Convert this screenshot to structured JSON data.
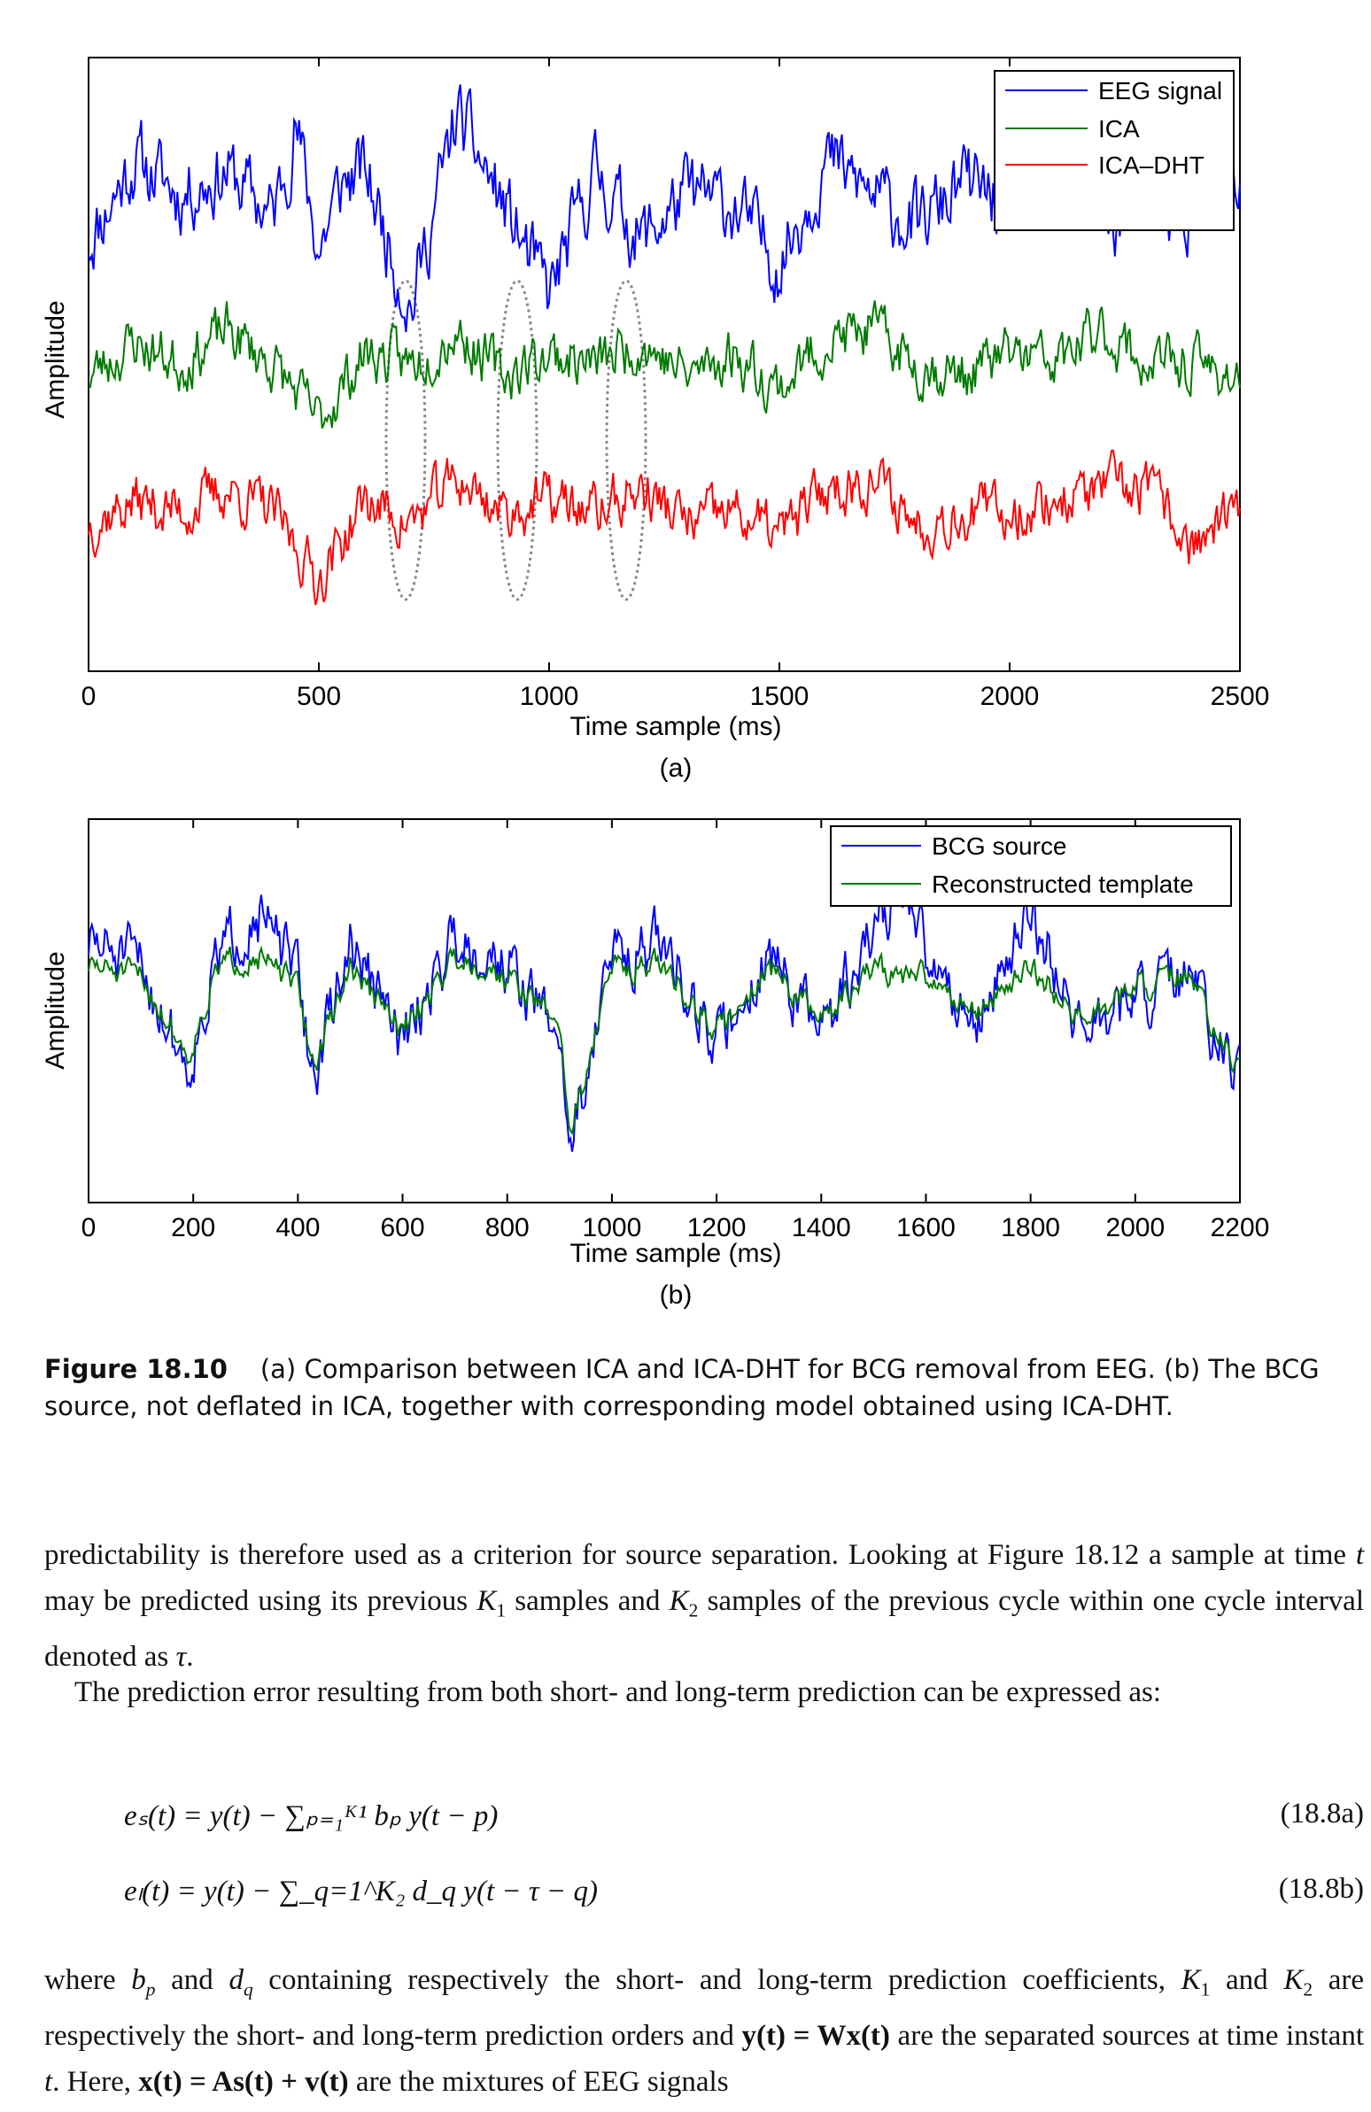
{
  "figure_a": {
    "ylabel": "Amplitude",
    "xlabel": "Time sample (ms)",
    "panel_label": "(a)",
    "xticks": [
      "0",
      "500",
      "1000",
      "1500",
      "2000",
      "2500"
    ],
    "legend": [
      "EEG signal",
      "ICA",
      "ICA–DHT"
    ],
    "colors": [
      "#0000ff",
      "#007a00",
      "#ff0000"
    ]
  },
  "figure_b": {
    "ylabel": "Amplitude",
    "xlabel": "Time sample (ms)",
    "panel_label": "(b)",
    "xticks": [
      "0",
      "200",
      "400",
      "600",
      "800",
      "1000",
      "1200",
      "1400",
      "1600",
      "1800",
      "2000",
      "2200"
    ],
    "legend": [
      "BCG source",
      "Reconstructed template"
    ],
    "colors": [
      "#0000ff",
      "#007a00"
    ]
  },
  "chart_data": [
    {
      "type": "line",
      "title": "(a)",
      "xlabel": "Time sample (ms)",
      "ylabel": "Amplitude",
      "xlim": [
        0,
        2500
      ],
      "xticks": [
        0,
        500,
        1000,
        1500,
        2000,
        2500
      ],
      "series": [
        {
          "name": "EEG signal",
          "x": [
            0,
            100,
            200,
            300,
            400,
            450,
            500,
            550,
            600,
            700,
            800,
            900,
            1000,
            1100,
            1200,
            1300,
            1400,
            1500,
            1600,
            1700,
            1800,
            1900,
            2000,
            2100,
            2200,
            2300,
            2400,
            2500
          ],
          "values": [
            0.2,
            0.9,
            0.6,
            0.8,
            0.4,
            1.2,
            0.1,
            0.7,
            0.8,
            -0.4,
            1.3,
            0.5,
            -0.3,
            0.8,
            0.2,
            0.6,
            0.5,
            0.0,
            0.9,
            0.6,
            0.3,
            0.7,
            0.5,
            0.9,
            0.3,
            0.6,
            0.4,
            0.6
          ]
        },
        {
          "name": "ICA",
          "x": [
            0,
            100,
            200,
            300,
            400,
            500,
            600,
            700,
            800,
            900,
            1000,
            1100,
            1200,
            1300,
            1400,
            1500,
            1600,
            1700,
            1800,
            1900,
            2000,
            2100,
            2200,
            2300,
            2400,
            2500
          ],
          "values": [
            -1.0,
            -0.7,
            -0.9,
            -0.6,
            -0.9,
            -1.4,
            -0.8,
            -0.9,
            -0.6,
            -1.0,
            -0.8,
            -0.9,
            -0.7,
            -1.0,
            -0.8,
            -1.1,
            -0.7,
            -0.6,
            -0.9,
            -1.0,
            -0.8,
            -0.9,
            -0.6,
            -0.9,
            -0.9,
            -1.0
          ]
        },
        {
          "name": "ICA–DHT",
          "x": [
            0,
            100,
            200,
            300,
            400,
            500,
            600,
            700,
            800,
            900,
            1000,
            1100,
            1200,
            1300,
            1400,
            1500,
            1600,
            1700,
            1800,
            1900,
            2000,
            2100,
            2200,
            2300,
            2400,
            2500
          ],
          "values": [
            -2.3,
            -2.1,
            -2.2,
            -2.0,
            -2.2,
            -2.8,
            -2.1,
            -2.3,
            -1.9,
            -2.2,
            -2.1,
            -2.2,
            -2.0,
            -2.3,
            -2.2,
            -2.4,
            -2.0,
            -1.9,
            -2.3,
            -2.2,
            -2.2,
            -2.1,
            -2.0,
            -2.0,
            -2.5,
            -2.2
          ]
        }
      ]
    },
    {
      "type": "line",
      "title": "(b)",
      "xlabel": "Time sample (ms)",
      "ylabel": "Amplitude",
      "xlim": [
        0,
        2200
      ],
      "xticks": [
        0,
        200,
        400,
        600,
        800,
        1000,
        1200,
        1400,
        1600,
        1800,
        2000,
        2200
      ],
      "series": [
        {
          "name": "BCG source",
          "x": [
            0,
            100,
            190,
            250,
            320,
            400,
            430,
            500,
            600,
            700,
            800,
            900,
            920,
            1000,
            1100,
            1200,
            1300,
            1400,
            1500,
            1550,
            1600,
            1700,
            1800,
            1900,
            2000,
            2100,
            2200
          ],
          "values": [
            0.3,
            0.1,
            -0.8,
            0.2,
            0.6,
            0.0,
            -0.9,
            0.3,
            -0.6,
            0.4,
            0.1,
            -0.5,
            -1.5,
            0.2,
            0.3,
            -0.6,
            0.2,
            -0.5,
            0.4,
            0.8,
            0.2,
            -0.4,
            0.6,
            -0.5,
            -0.2,
            0.0,
            -1.0
          ]
        },
        {
          "name": "Reconstructed template",
          "x": [
            0,
            100,
            190,
            250,
            320,
            400,
            430,
            500,
            600,
            700,
            800,
            900,
            920,
            1000,
            1100,
            1200,
            1300,
            1400,
            1500,
            1550,
            1600,
            1700,
            1800,
            1900,
            2000,
            2100,
            2200
          ],
          "values": [
            0.1,
            0.0,
            -0.7,
            0.1,
            0.2,
            -0.1,
            -0.8,
            0.1,
            -0.5,
            0.2,
            0.0,
            -0.4,
            -1.4,
            0.1,
            0.1,
            -0.5,
            0.1,
            -0.4,
            0.1,
            0.0,
            0.0,
            -0.3,
            0.1,
            -0.4,
            -0.1,
            0.0,
            -0.9
          ]
        }
      ]
    }
  ],
  "caption": {
    "label": "Figure 18.10",
    "text": "(a) Comparison between ICA and ICA-DHT for BCG removal from EEG. (b) The BCG source, not deflated in ICA, together with corresponding model obtained using ICA-DHT."
  },
  "body": {
    "p1_a": "predictability is therefore used as a criterion for source separation. Looking at Figure 18.12 a sample at time ",
    "p1_t": "t",
    "p1_b": " may be predicted using its previous ",
    "p1_k1": "K",
    "p1_k1sub": "1",
    "p1_c": " samples and ",
    "p1_k2": "K",
    "p1_k2sub": "2",
    "p1_d": " samples of the previous cycle within one cycle interval denoted as ",
    "p1_tau": "τ",
    "p1_e": ".",
    "p2": "The prediction error resulting from both short- and long-term prediction can be expressed as:",
    "eq_a": "eₛ(t) = y(t) − ∑ₚ₌₁ᴷ¹ bₚ y(t − p)",
    "eq_a_num": "(18.8a)",
    "eq_b": "eₗ(t) = y(t) − ∑_q=1^K₂ d_q y(t − τ − q)",
    "eq_b_num": "(18.8b)",
    "p3_a": "where ",
    "p3_bp": "b",
    "p3_bp_sub": "p",
    "p3_b": " and ",
    "p3_dq": "d",
    "p3_dq_sub": "q",
    "p3_c": " containing respectively the short- and long-term prediction coefficients, ",
    "p3_k1": "K",
    "p3_k1sub": "1",
    "p3_d": " and ",
    "p3_k2": "K",
    "p3_k2sub": "2",
    "p3_e": " are respectively the short- and long-term prediction orders and ",
    "p3_f": "y(t) = Wx(t)",
    "p3_g": " are the separated sources at time instant ",
    "p3_t": "t",
    "p3_h": ". Here, ",
    "p3_i": "x(t) = As(t) + v(t)",
    "p3_j": " are the mixtures of EEG signals"
  }
}
